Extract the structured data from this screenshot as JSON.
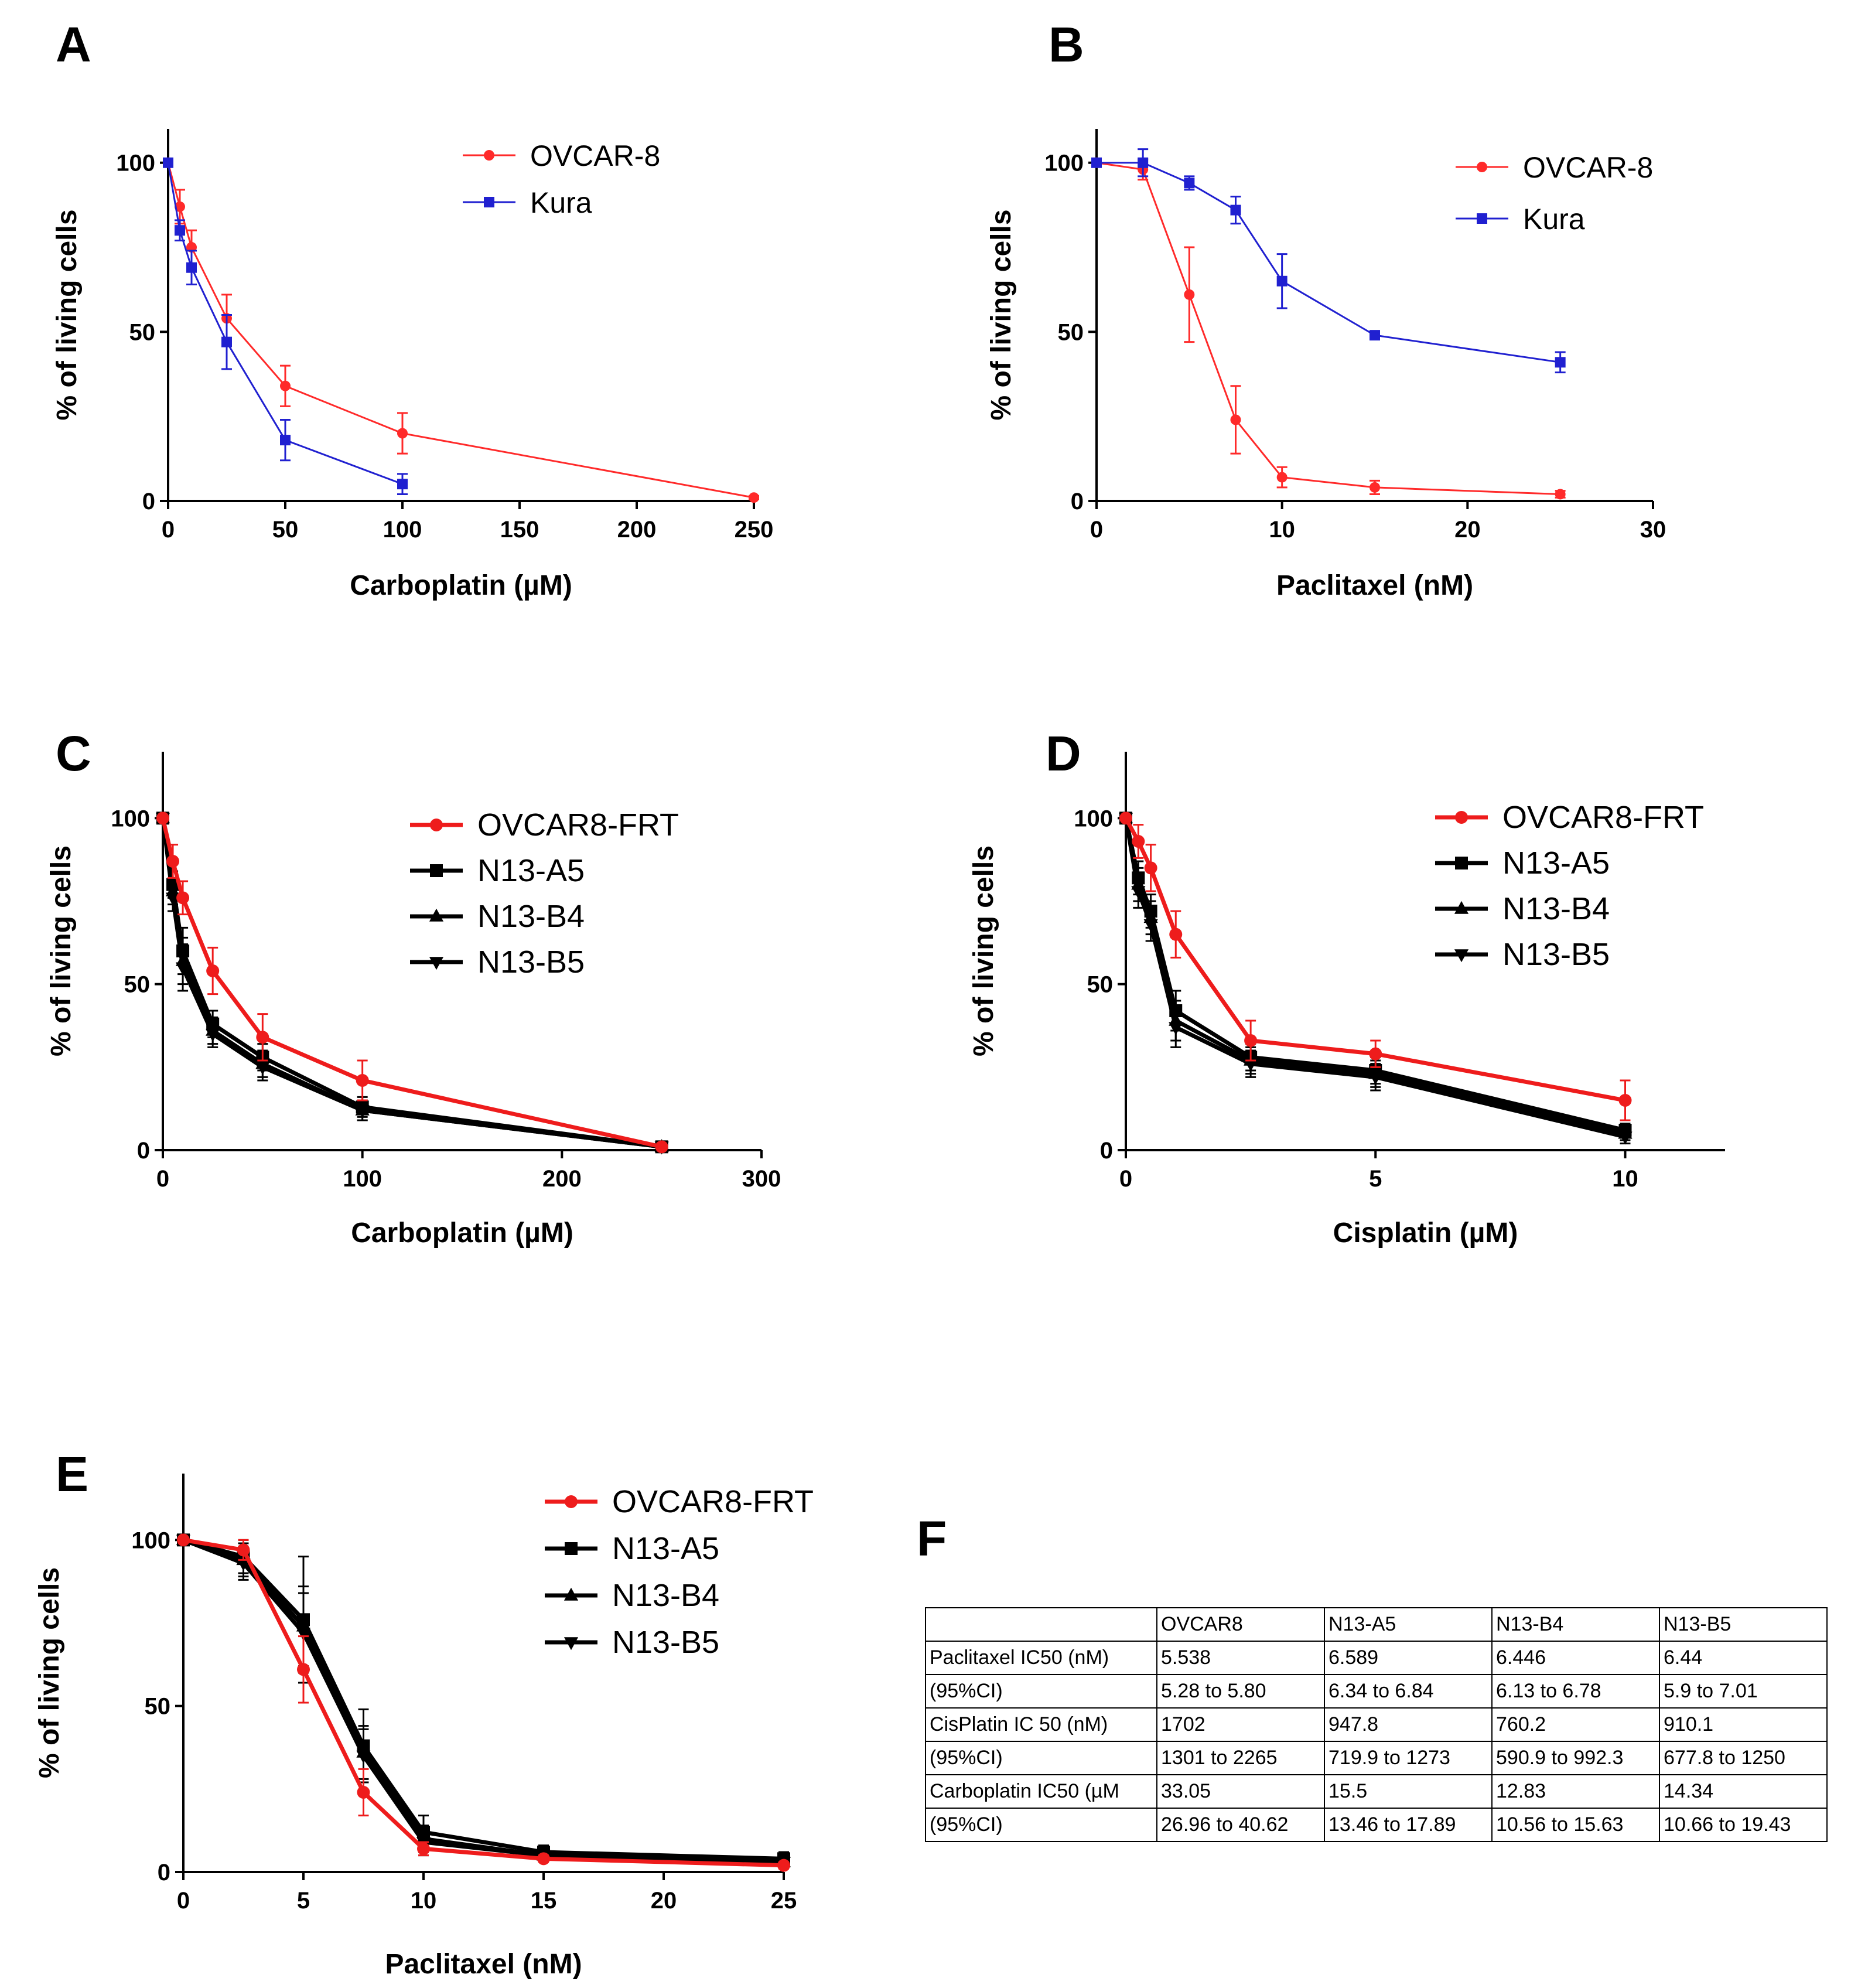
{
  "panels": [
    {
      "letter": "A",
      "chart_data": {
        "type": "line",
        "xlabel": "Carboplatin (µM)",
        "ylabel": "% of living cells",
        "xlim": [
          0,
          250
        ],
        "ylim": [
          0,
          110
        ],
        "xticks": [
          0,
          50,
          100,
          150,
          200,
          250
        ],
        "yticks": [
          0,
          50,
          100
        ],
        "legend_position": "top-right",
        "series": [
          {
            "name": "OVCAR-8",
            "color": "#ff2a2a",
            "marker": "circle",
            "x": [
              0,
              5,
              10,
              25,
              50,
              100,
              250
            ],
            "y": [
              100,
              87,
              75,
              54,
              34,
              20,
              1
            ],
            "err": [
              0,
              5,
              5,
              7,
              6,
              6,
              0.5
            ]
          },
          {
            "name": "Kura",
            "color": "#2020d0",
            "marker": "square",
            "x": [
              0,
              5,
              10,
              25,
              50,
              100
            ],
            "y": [
              100,
              80,
              69,
              47,
              18,
              5
            ],
            "err": [
              0,
              3,
              5,
              8,
              6,
              3
            ]
          }
        ]
      }
    },
    {
      "letter": "B",
      "chart_data": {
        "type": "line",
        "xlabel": "Paclitaxel (nM)",
        "ylabel": "% of living cells",
        "xlim": [
          0,
          30
        ],
        "ylim": [
          0,
          110
        ],
        "xticks": [
          0,
          10,
          20,
          30
        ],
        "yticks": [
          0,
          50,
          100
        ],
        "legend_position": "top-right",
        "series": [
          {
            "name": "OVCAR-8",
            "color": "#ff2a2a",
            "marker": "circle",
            "x": [
              0,
              2.5,
              5,
              7.5,
              10,
              15,
              25
            ],
            "y": [
              100,
              98,
              61,
              24,
              7,
              4,
              2
            ],
            "err": [
              0,
              3,
              14,
              10,
              3,
              2,
              1
            ]
          },
          {
            "name": "Kura",
            "color": "#2020d0",
            "marker": "square",
            "x": [
              0,
              2.5,
              5,
              7.5,
              10,
              15,
              25
            ],
            "y": [
              100,
              100,
              94,
              86,
              65,
              49,
              41
            ],
            "err": [
              0,
              4,
              2,
              4,
              8,
              1,
              3
            ]
          }
        ]
      }
    },
    {
      "letter": "C",
      "chart_data": {
        "type": "line",
        "xlabel": "Carboplatin (µM)",
        "ylabel": "% of living cells",
        "xlim": [
          0,
          300
        ],
        "ylim": [
          0,
          120
        ],
        "xticks": [
          0,
          100,
          200,
          300
        ],
        "yticks": [
          0,
          50,
          100
        ],
        "legend_position": "top-right",
        "series": [
          {
            "name": "OVCAR8-FRT",
            "color": "#ee1c1c",
            "marker": "circle",
            "x": [
              0,
              5,
              10,
              25,
              50,
              100,
              250
            ],
            "y": [
              100,
              87,
              76,
              54,
              34,
              21,
              1
            ],
            "err": [
              0,
              5,
              5,
              7,
              7,
              6,
              1
            ]
          },
          {
            "name": "N13-A5",
            "color": "#000000",
            "marker": "square",
            "x": [
              0,
              5,
              10,
              25,
              50,
              100,
              250
            ],
            "y": [
              100,
              80,
              60,
              38,
              28,
              13,
              1
            ],
            "err": [
              0,
              4,
              7,
              4,
              4,
              3,
              1
            ]
          },
          {
            "name": "N13-B4",
            "color": "#000000",
            "marker": "triangle-up",
            "x": [
              0,
              5,
              10,
              25,
              50,
              100,
              250
            ],
            "y": [
              100,
              78,
              57,
              36,
              26,
              12,
              1
            ],
            "err": [
              0,
              4,
              7,
              4,
              4,
              3,
              1
            ]
          },
          {
            "name": "N13-B5",
            "color": "#000000",
            "marker": "triangle-down",
            "x": [
              0,
              5,
              10,
              25,
              50,
              100,
              250
            ],
            "y": [
              100,
              76,
              55,
              35,
              25,
              12,
              1
            ],
            "err": [
              0,
              4,
              7,
              4,
              4,
              3,
              1
            ]
          }
        ]
      }
    },
    {
      "letter": "D",
      "chart_data": {
        "type": "line",
        "xlabel": "Cisplatin (µM)",
        "ylabel": "% of living cells",
        "xlim": [
          0,
          12
        ],
        "ylim": [
          0,
          120
        ],
        "xticks": [
          0,
          5,
          10
        ],
        "yticks": [
          0,
          50,
          100
        ],
        "legend_position": "top-right",
        "series": [
          {
            "name": "OVCAR8-FRT",
            "color": "#ee1c1c",
            "marker": "circle",
            "x": [
              0,
              0.25,
              0.5,
              1,
              2.5,
              5,
              10
            ],
            "y": [
              100,
              93,
              85,
              65,
              33,
              29,
              15
            ],
            "err": [
              0,
              5,
              7,
              7,
              6,
              4,
              6
            ]
          },
          {
            "name": "N13-A5",
            "color": "#000000",
            "marker": "square",
            "x": [
              0,
              0.25,
              0.5,
              1,
              2.5,
              5,
              10
            ],
            "y": [
              100,
              82,
              72,
              42,
              28,
              24,
              6
            ],
            "err": [
              0,
              5,
              5,
              6,
              4,
              4,
              2
            ]
          },
          {
            "name": "N13-B4",
            "color": "#000000",
            "marker": "triangle-up",
            "x": [
              0,
              0.25,
              0.5,
              1,
              2.5,
              5,
              10
            ],
            "y": [
              100,
              80,
              70,
              39,
              27,
              23,
              5
            ],
            "err": [
              0,
              5,
              5,
              6,
              4,
              4,
              2
            ]
          },
          {
            "name": "N13-B5",
            "color": "#000000",
            "marker": "triangle-down",
            "x": [
              0,
              0.25,
              0.5,
              1,
              2.5,
              5,
              10
            ],
            "y": [
              100,
              78,
              68,
              37,
              26,
              22,
              4
            ],
            "err": [
              0,
              5,
              5,
              6,
              4,
              4,
              2
            ]
          }
        ]
      }
    },
    {
      "letter": "E",
      "chart_data": {
        "type": "line",
        "xlabel": "Paclitaxel (nM)",
        "ylabel": "% of living cells",
        "xlim": [
          0,
          25
        ],
        "ylim": [
          0,
          120
        ],
        "xticks": [
          0,
          5,
          10,
          15,
          20,
          25
        ],
        "yticks": [
          0,
          50,
          100
        ],
        "legend_position": "top-right",
        "series": [
          {
            "name": "OVCAR8-FRT",
            "color": "#ee1c1c",
            "marker": "circle",
            "x": [
              0,
              2.5,
              5,
              7.5,
              10,
              15,
              25
            ],
            "y": [
              100,
              97,
              61,
              24,
              7,
              4,
              2
            ],
            "err": [
              0,
              3,
              10,
              7,
              2,
              1,
              1
            ]
          },
          {
            "name": "N13-A5",
            "color": "#000000",
            "marker": "square",
            "x": [
              0,
              2.5,
              5,
              7.5,
              10,
              15,
              25
            ],
            "y": [
              100,
              95,
              76,
              38,
              12,
              6,
              4
            ],
            "err": [
              0,
              5,
              19,
              11,
              5,
              2,
              2
            ]
          },
          {
            "name": "N13-B4",
            "color": "#000000",
            "marker": "triangle-up",
            "x": [
              0,
              2.5,
              5,
              7.5,
              10,
              15,
              25
            ],
            "y": [
              100,
              94,
              74,
              36,
              10,
              5,
              3
            ],
            "err": [
              0,
              5,
              12,
              8,
              4,
              2,
              1
            ]
          },
          {
            "name": "N13-B5",
            "color": "#000000",
            "marker": "triangle-down",
            "x": [
              0,
              2.5,
              5,
              7.5,
              10,
              15,
              25
            ],
            "y": [
              100,
              93,
              72,
              35,
              9,
              5,
              3
            ],
            "err": [
              0,
              5,
              12,
              8,
              4,
              2,
              1
            ]
          }
        ]
      }
    }
  ],
  "table_panel": {
    "letter": "F",
    "chart_data": {
      "type": "table",
      "header": [
        "",
        "OVCAR8",
        "N13-A5",
        "N13-B4",
        "N13-B5"
      ],
      "rows": [
        [
          "Paclitaxel IC50 (nM)",
          "5.538",
          "6.589",
          "6.446",
          "6.44"
        ],
        [
          "(95%CI)",
          "5.28 to 5.80",
          "6.34 to 6.84",
          "6.13 to 6.78",
          "5.9 to 7.01"
        ],
        [
          "CisPlatin IC 50 (nM)",
          "1702",
          "947.8",
          "760.2",
          "910.1"
        ],
        [
          "(95%CI)",
          "1301 to 2265",
          "719.9 to 1273",
          "590.9 to 992.3",
          "677.8 to 1250"
        ],
        [
          "Carboplatin IC50 (µM",
          "33.05",
          "15.5",
          "12.83",
          "14.34"
        ],
        [
          "(95%CI)",
          "26.96 to 40.62",
          "13.46 to 17.89",
          "10.56 to 15.63",
          "10.66 to 19.43"
        ]
      ]
    }
  }
}
